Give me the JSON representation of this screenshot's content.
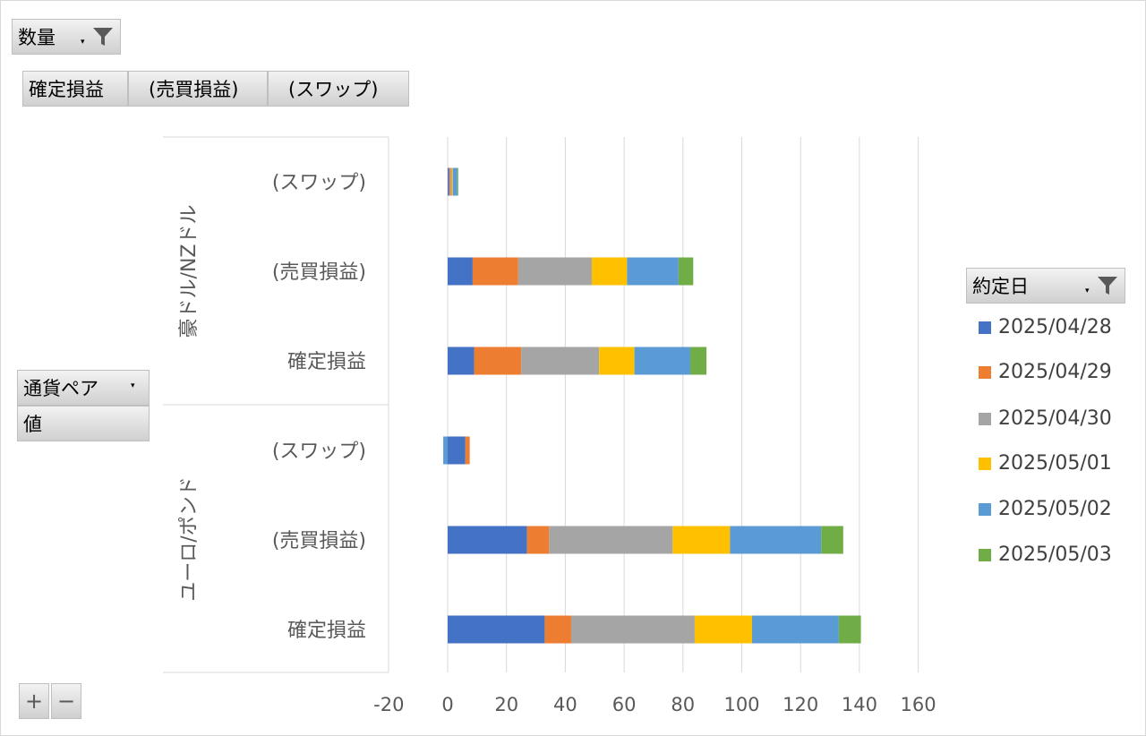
{
  "filter_button": {
    "label": "数量"
  },
  "column_buttons": [
    {
      "label": "確定損益"
    },
    {
      "label": "(売買損益)"
    },
    {
      "label": "(スワップ)"
    }
  ],
  "row_buttons": {
    "currency_pair": {
      "label": "通貨ペア"
    },
    "values": {
      "label": "値"
    }
  },
  "legend": {
    "title": "約定日",
    "items": [
      {
        "label": "2025/04/28",
        "color": "#4472C4"
      },
      {
        "label": "2025/04/29",
        "color": "#ED7D31"
      },
      {
        "label": "2025/04/30",
        "color": "#A5A5A5"
      },
      {
        "label": "2025/05/01",
        "color": "#FFC000"
      },
      {
        "label": "2025/05/02",
        "color": "#5B9BD5"
      },
      {
        "label": "2025/05/03",
        "color": "#70AD47"
      }
    ]
  },
  "zoom_buttons": {
    "plus": "+",
    "minus": "−"
  },
  "chart_data": {
    "type": "bar",
    "orientation": "horizontal",
    "stacked": true,
    "groups": [
      "豪ドル/NZドル",
      "ユーロ/ポンド"
    ],
    "categories": [
      {
        "group": "豪ドル/NZドル",
        "label": "(スワップ)"
      },
      {
        "group": "豪ドル/NZドル",
        "label": "(売買損益)"
      },
      {
        "group": "豪ドル/NZドル",
        "label": "確定損益"
      },
      {
        "group": "ユーロ/ポンド",
        "label": "(スワップ)"
      },
      {
        "group": "ユーロ/ポンド",
        "label": "(売買損益)"
      },
      {
        "group": "ユーロ/ポンド",
        "label": "確定損益"
      }
    ],
    "series": [
      {
        "name": "2025/04/28",
        "values": [
          0.5,
          8.5,
          9,
          6,
          27,
          33
        ]
      },
      {
        "name": "2025/04/29",
        "values": [
          0.5,
          15.5,
          16,
          1.5,
          7.5,
          9
        ]
      },
      {
        "name": "2025/04/30",
        "values": [
          0.5,
          25,
          26.5,
          0,
          42,
          42
        ]
      },
      {
        "name": "2025/05/01",
        "values": [
          0.3,
          12,
          12,
          0,
          19.5,
          19.5
        ]
      },
      {
        "name": "2025/05/02",
        "values": [
          1.5,
          17.5,
          19,
          -1.5,
          31,
          29.5
        ]
      },
      {
        "name": "2025/05/03",
        "values": [
          0.3,
          5,
          5.5,
          0,
          7.5,
          7.5
        ]
      }
    ],
    "xlim": [
      -20,
      160
    ],
    "xticks": [
      -20,
      0,
      20,
      40,
      60,
      80,
      100,
      120,
      140,
      160
    ],
    "grid": true,
    "legend_position": "right"
  }
}
